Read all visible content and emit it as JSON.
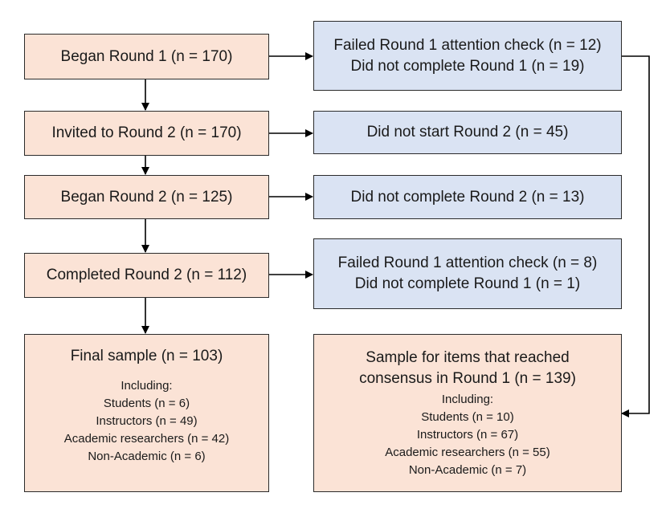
{
  "left_column": {
    "began_round1": "Began Round 1 (n = 170)",
    "invited_round2": "Invited to Round 2 (n = 170)",
    "began_round2": "Began Round 2 (n = 125)",
    "completed_round2": "Completed Round 2 (n = 112)",
    "final_sample": {
      "title": "Final sample (n = 103)",
      "including": "Including:",
      "items": [
        "Students (n = 6)",
        "Instructors (n = 49)",
        "Academic researchers (n = 42)",
        "Non-Academic (n = 6)"
      ]
    }
  },
  "right_column": {
    "exclusion_round1": {
      "lines": [
        "Failed Round 1 attention check (n = 12)",
        "Did not complete Round 1 (n = 19)"
      ]
    },
    "not_started_round2": "Did not start Round 2 (n = 45)",
    "not_completed_round2": "Did not complete Round 2 (n = 13)",
    "exclusion_round2": {
      "lines": [
        "Failed Round 1 attention check (n = 8)",
        "Did not complete Round 1 (n = 1)"
      ]
    },
    "consensus_sample": {
      "title_lines": [
        "Sample for items that reached",
        "consensus in Round 1 (n = 139)"
      ],
      "including": "Including:",
      "items": [
        "Students (n = 10)",
        "Instructors (n = 67)",
        "Academic researchers (n = 55)",
        "Non-Academic (n = 7)"
      ]
    }
  },
  "colors": {
    "left_fill": "#fbe3d6",
    "right_fill": "#dae3f3",
    "border": "#2b2b2b"
  }
}
